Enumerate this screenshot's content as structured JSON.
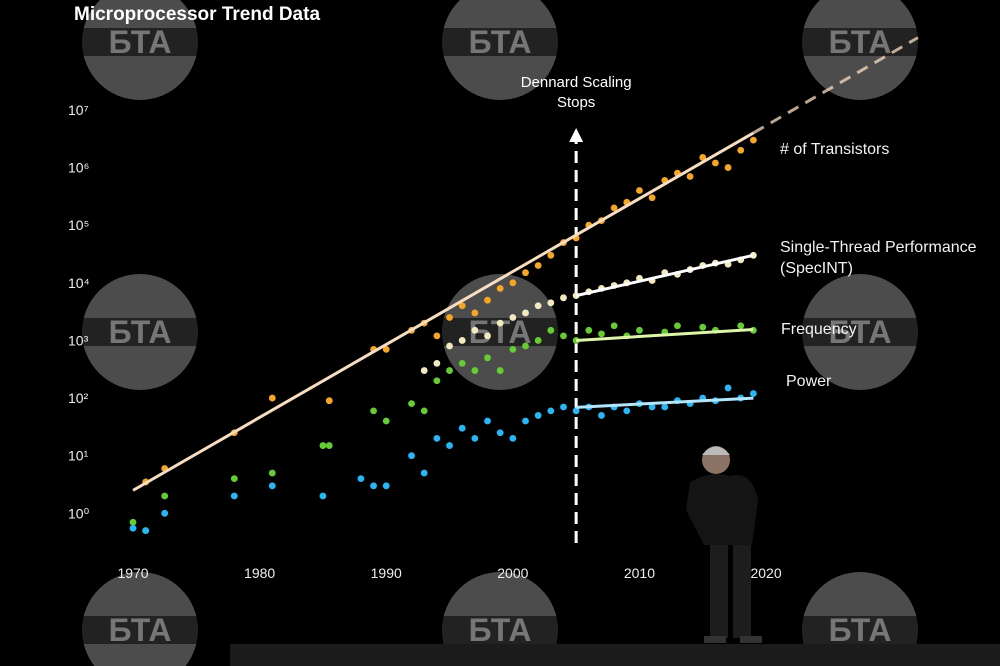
{
  "chart_data": {
    "type": "scatter",
    "title": "Microprocessor Trend Data",
    "log_y": true,
    "xlim": [
      1968,
      2034
    ],
    "xticks": [
      1970,
      1980,
      1990,
      2000,
      2010,
      2020
    ],
    "ylim": [
      0.25,
      200000000
    ],
    "yticks": [
      {
        "value": 1,
        "label": "10⁰"
      },
      {
        "value": 10,
        "label": "10¹"
      },
      {
        "value": 100,
        "label": "10²"
      },
      {
        "value": 1000,
        "label": "10³"
      },
      {
        "value": 10000,
        "label": "10⁴"
      },
      {
        "value": 100000,
        "label": "10⁵"
      },
      {
        "value": 1000000,
        "label": "10⁶"
      },
      {
        "value": 10000000,
        "label": "10⁷"
      }
    ],
    "annotation": {
      "text": "Dennard Scaling Stops",
      "x": 2005
    },
    "watermark": "БТА",
    "series": [
      {
        "name": "# of Transistors",
        "color": "#f5a623",
        "trend_color": "#f7dcc0",
        "x": [
          1971,
          1972.5,
          1978,
          1981,
          1985.5,
          1989,
          1990,
          1992,
          1993,
          1994,
          1995,
          1996,
          1997,
          1998,
          1999,
          2000,
          2001,
          2002,
          2003,
          2004,
          2005,
          2006,
          2007,
          2008,
          2009,
          2010,
          2011,
          2012,
          2013,
          2014,
          2015,
          2016,
          2017,
          2018,
          2019
        ],
        "values": [
          3.5,
          6,
          25,
          100,
          90,
          700,
          700,
          1500,
          2000,
          1200,
          2500,
          4000,
          3000,
          5000,
          8000,
          10000,
          15000,
          20000,
          30000,
          50000,
          60000,
          100000,
          120000,
          200000,
          250000,
          400000,
          300000,
          600000,
          800000,
          700000,
          1500000,
          1200000,
          1000000,
          2000000,
          3000000
        ],
        "trend": {
          "x": [
            1970,
            2019
          ],
          "values": [
            2.5,
            4000000
          ]
        },
        "trend_extension": {
          "x": [
            2019,
            2032
          ],
          "values": [
            4000000,
            180000000
          ]
        }
      },
      {
        "name": "Single-Thread Performance (SpecINT)",
        "color": "#f3e9c0",
        "trend_color": "#ffffff",
        "x": [
          1993,
          1994,
          1995,
          1996,
          1997,
          1998,
          1999,
          2000,
          2001,
          2002,
          2003,
          2004,
          2005,
          2006,
          2007,
          2008,
          2009,
          2010,
          2011,
          2012,
          2013,
          2014,
          2015,
          2016,
          2017,
          2018,
          2019
        ],
        "values": [
          300,
          400,
          800,
          1000,
          1500,
          1200,
          2000,
          2500,
          3000,
          4000,
          4500,
          5500,
          6000,
          7000,
          8000,
          9000,
          10000,
          12000,
          11000,
          15000,
          14000,
          17000,
          20000,
          22000,
          21000,
          25000,
          30000
        ],
        "trend": {
          "x": [
            2005,
            2019
          ],
          "values": [
            6000,
            30000
          ]
        }
      },
      {
        "name": "Frequency",
        "color": "#66cc33",
        "trend_color": "#dcf5a8",
        "x": [
          1970,
          1971,
          1972.5,
          1978,
          1981,
          1985,
          1985.5,
          1989,
          1990,
          1992,
          1993,
          1994,
          1995,
          1996,
          1997,
          1998,
          1999,
          2000,
          2001,
          2002,
          2003,
          2004,
          2005,
          2006,
          2007,
          2008,
          2009,
          2010,
          2012,
          2013,
          2015,
          2016,
          2018,
          2019
        ],
        "values": [
          0.7,
          0.5,
          2,
          4,
          5,
          15,
          15,
          60,
          40,
          80,
          60,
          200,
          300,
          400,
          300,
          500,
          300,
          700,
          800,
          1000,
          1500,
          1200,
          1000,
          1500,
          1300,
          1800,
          1200,
          1500,
          1400,
          1800,
          1700,
          1500,
          1800,
          1500
        ],
        "trend": {
          "x": [
            2005,
            2019
          ],
          "values": [
            1000,
            1550
          ]
        }
      },
      {
        "name": "Power",
        "color": "#29b6f6",
        "trend_color": "#b3e5fc",
        "x": [
          1970,
          1971,
          1972.5,
          1978,
          1981,
          1985,
          1988,
          1989,
          1990,
          1992,
          1993,
          1994,
          1995,
          1996,
          1997,
          1998,
          1999,
          2000,
          2001,
          2002,
          2003,
          2004,
          2005,
          2006,
          2007,
          2008,
          2009,
          2010,
          2011,
          2012,
          2013,
          2014,
          2015,
          2016,
          2017,
          2018,
          2019
        ],
        "values": [
          0.55,
          0.5,
          1,
          2,
          3,
          2,
          4,
          3,
          3,
          10,
          5,
          20,
          15,
          30,
          20,
          40,
          25,
          20,
          40,
          50,
          60,
          70,
          60,
          70,
          50,
          70,
          60,
          80,
          70,
          70,
          90,
          80,
          100,
          90,
          150,
          100,
          120
        ],
        "trend": {
          "x": [
            2005,
            2019
          ],
          "values": [
            69,
            100
          ]
        }
      }
    ]
  }
}
